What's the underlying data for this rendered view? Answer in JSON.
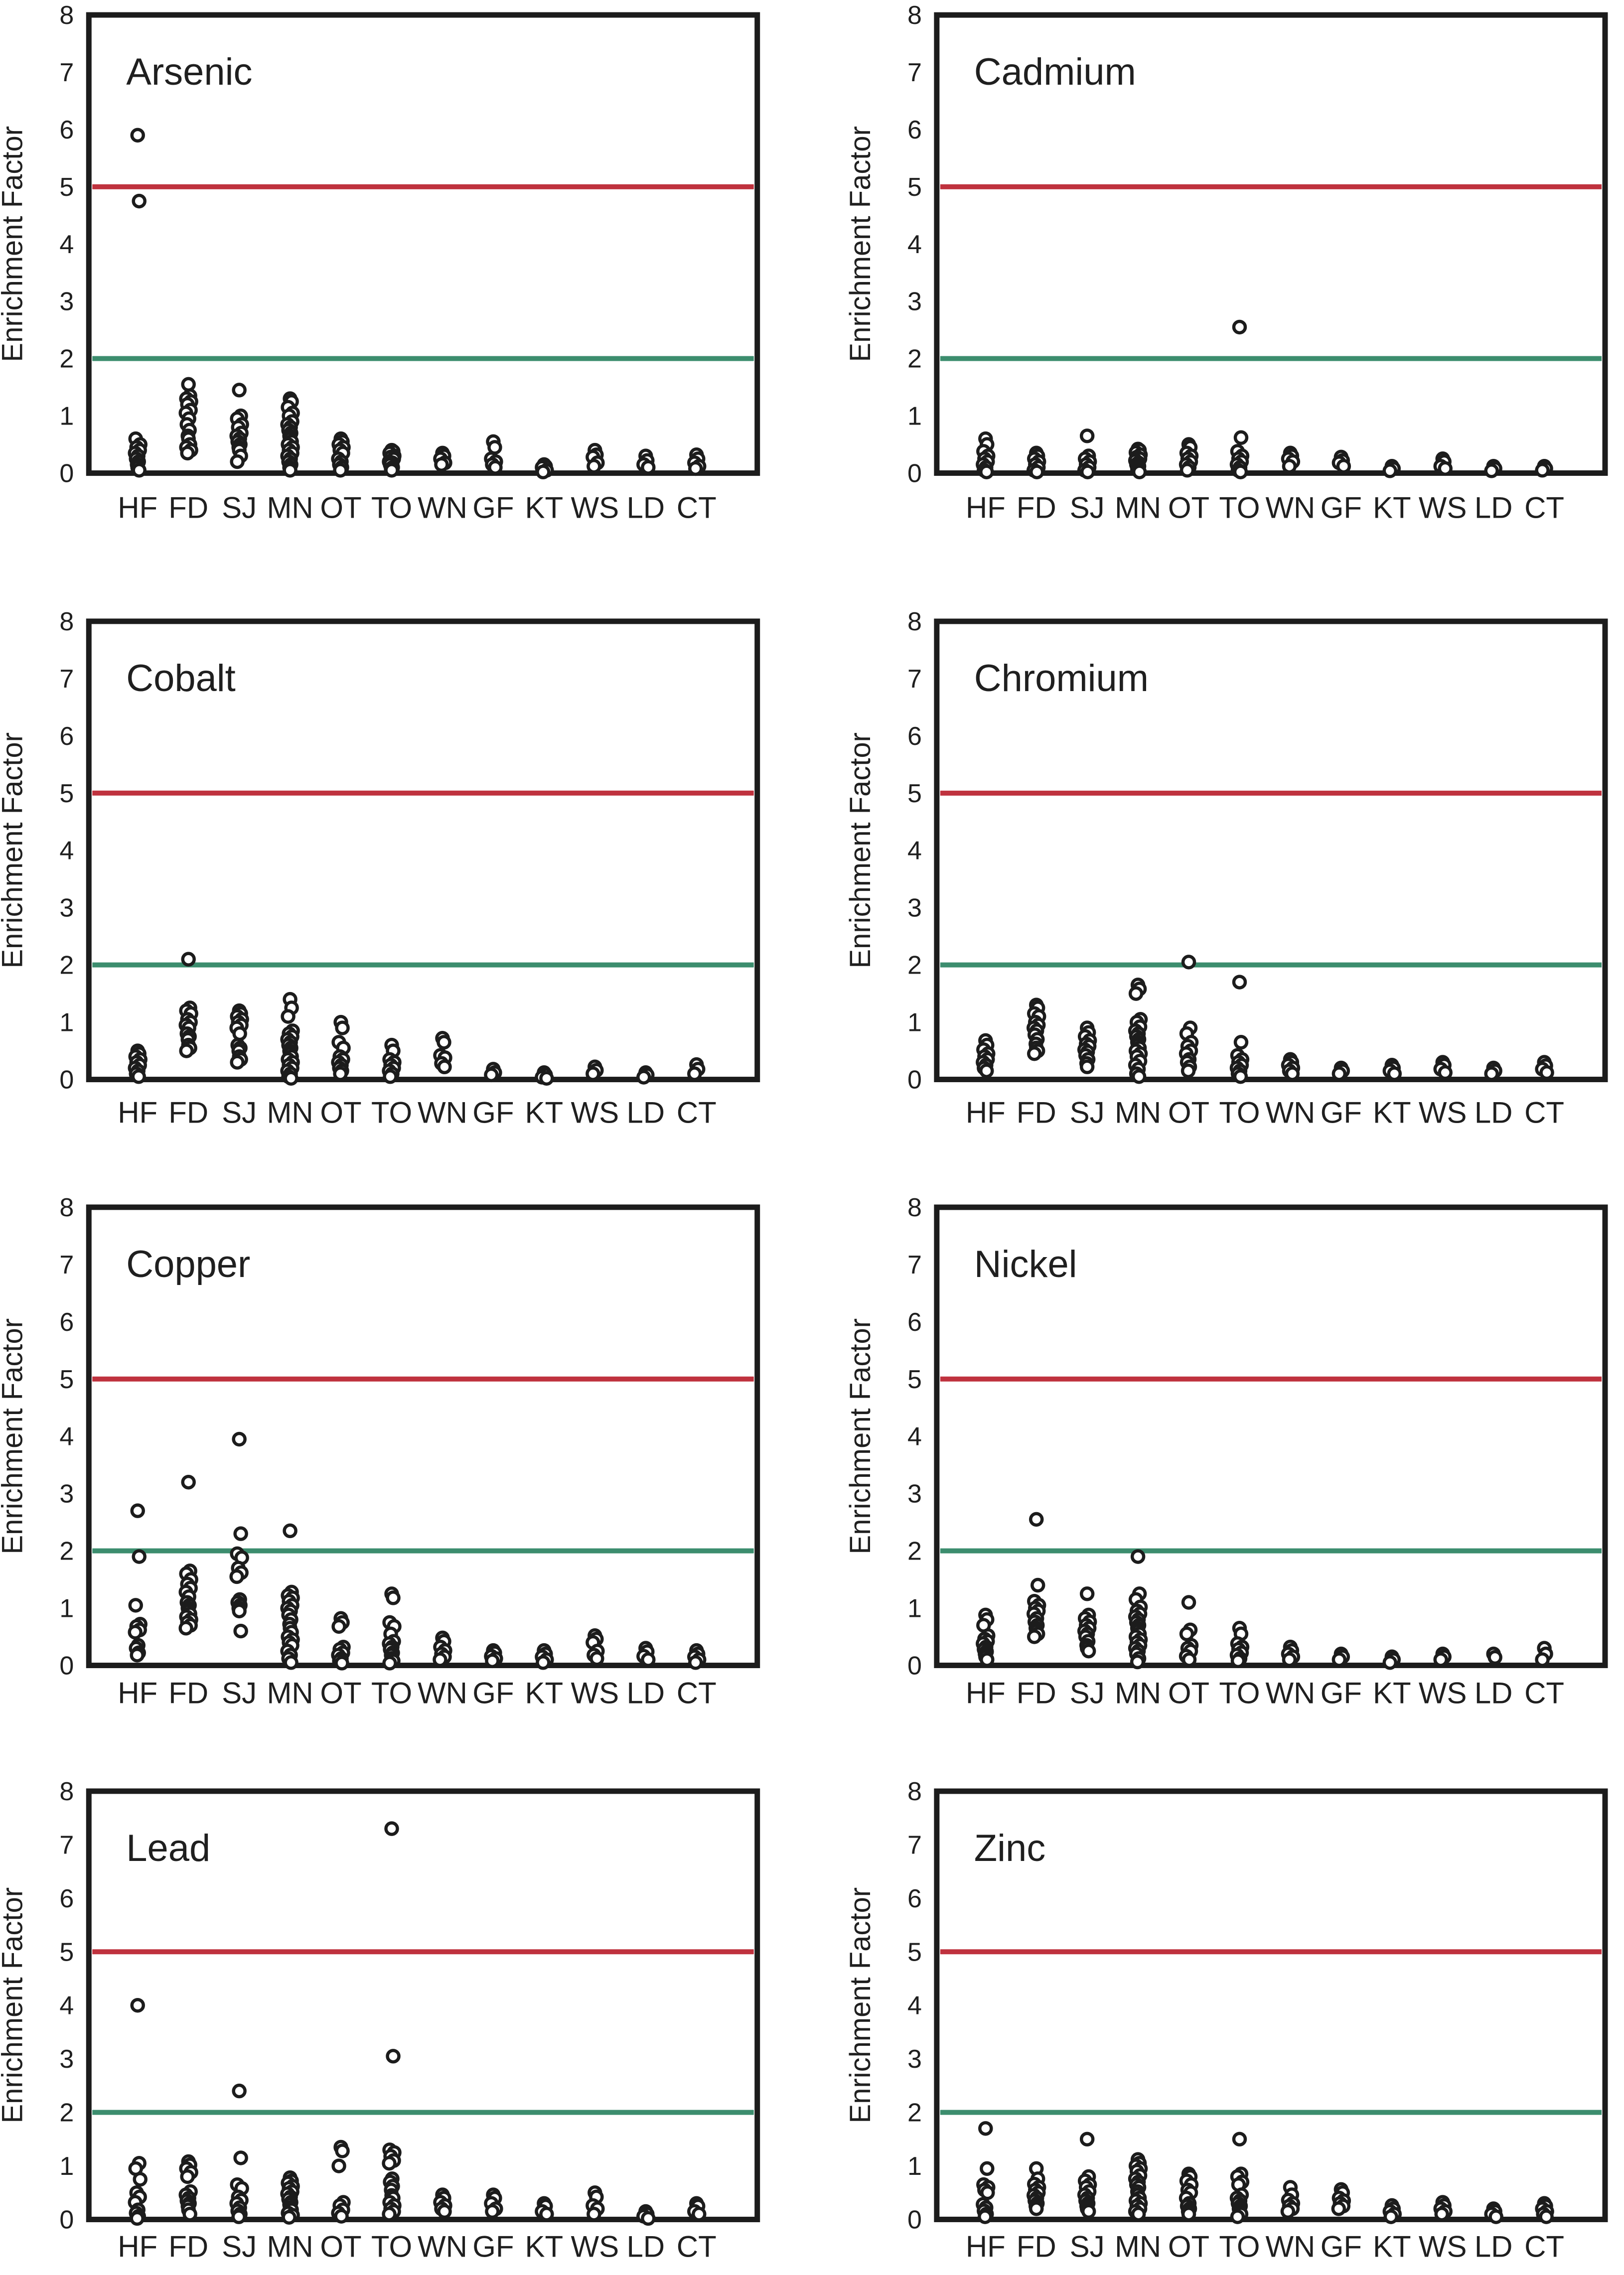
{
  "figure": {
    "ylabel": "Enrichment Factor",
    "ylim": [
      0,
      8
    ],
    "yticks": [
      0,
      1,
      2,
      3,
      4,
      5,
      6,
      7,
      8
    ],
    "categories": [
      "HF",
      "FD",
      "SJ",
      "MN",
      "OT",
      "TO",
      "WN",
      "GF",
      "KT",
      "WS",
      "LD",
      "CT"
    ],
    "thresholds": {
      "upper": {
        "value": 5,
        "color": "#bf323e",
        "name": "significant-enrichment-line"
      },
      "lower": {
        "value": 2,
        "color": "#3c8d6e",
        "name": "minimal-enrichment-line"
      }
    },
    "marker": {
      "shape": "open-circle",
      "stroke": "#1c1c1c",
      "fill": "#ffffff"
    },
    "grid": "off",
    "legend": "none"
  },
  "chart_data": [
    {
      "type": "scatter",
      "title": "Arsenic",
      "xlabel": "",
      "ylabel": "Enrichment Factor",
      "ylim": [
        0,
        8
      ],
      "points": {
        "HF": [
          5.9,
          4.75,
          0.6,
          0.5,
          0.45,
          0.4,
          0.35,
          0.3,
          0.25,
          0.2,
          0.15,
          0.1,
          0.05
        ],
        "FD": [
          1.55,
          1.35,
          1.3,
          1.25,
          1.2,
          1.1,
          1.05,
          0.95,
          0.85,
          0.75,
          0.65,
          0.6,
          0.5,
          0.45,
          0.4,
          0.35
        ],
        "SJ": [
          1.45,
          1.0,
          0.95,
          0.85,
          0.8,
          0.7,
          0.65,
          0.6,
          0.55,
          0.5,
          0.45,
          0.4,
          0.3,
          0.2
        ],
        "MN": [
          1.3,
          1.25,
          1.15,
          1.05,
          1.0,
          0.9,
          0.85,
          0.8,
          0.75,
          0.7,
          0.65,
          0.6,
          0.55,
          0.5,
          0.45,
          0.4,
          0.35,
          0.3,
          0.25,
          0.2,
          0.15,
          0.1,
          0.05
        ],
        "OT": [
          0.6,
          0.55,
          0.5,
          0.45,
          0.4,
          0.35,
          0.25,
          0.2,
          0.15,
          0.1,
          0.05
        ],
        "TO": [
          0.4,
          0.38,
          0.35,
          0.3,
          0.28,
          0.25,
          0.2,
          0.18,
          0.15,
          0.1,
          0.08,
          0.05
        ],
        "WN": [
          0.35,
          0.3,
          0.25,
          0.18,
          0.15
        ],
        "GF": [
          0.55,
          0.45,
          0.25,
          0.2,
          0.15,
          0.1
        ],
        "KT": [
          0.15,
          0.12,
          0.1,
          0.05,
          0.02
        ],
        "WS": [
          0.4,
          0.32,
          0.28,
          0.18,
          0.12
        ],
        "LD": [
          0.3,
          0.22,
          0.15,
          0.1
        ],
        "CT": [
          0.32,
          0.25,
          0.18,
          0.12,
          0.08
        ]
      }
    },
    {
      "type": "scatter",
      "title": "Cadmium",
      "xlabel": "",
      "ylabel": "Enrichment Factor",
      "ylim": [
        0,
        8
      ],
      "points": {
        "HF": [
          0.6,
          0.5,
          0.38,
          0.3,
          0.25,
          0.2,
          0.15,
          0.1,
          0.05,
          0.02
        ],
        "FD": [
          0.35,
          0.3,
          0.25,
          0.2,
          0.15,
          0.1,
          0.05,
          0.02
        ],
        "SJ": [
          0.65,
          0.3,
          0.25,
          0.2,
          0.15,
          0.1,
          0.05,
          0.02
        ],
        "MN": [
          0.42,
          0.4,
          0.36,
          0.32,
          0.28,
          0.25,
          0.22,
          0.18,
          0.15,
          0.12,
          0.08,
          0.05,
          0.02
        ],
        "OT": [
          0.5,
          0.45,
          0.35,
          0.3,
          0.25,
          0.2,
          0.15,
          0.1,
          0.05
        ],
        "TO": [
          2.55,
          0.62,
          0.38,
          0.3,
          0.25,
          0.2,
          0.15,
          0.1,
          0.05,
          0.02
        ],
        "WN": [
          0.35,
          0.3,
          0.25,
          0.2,
          0.12
        ],
        "GF": [
          0.28,
          0.22,
          0.18,
          0.12
        ],
        "KT": [
          0.12,
          0.08,
          0.04
        ],
        "WS": [
          0.25,
          0.2,
          0.12,
          0.08
        ],
        "LD": [
          0.12,
          0.08,
          0.04
        ],
        "CT": [
          0.12,
          0.08,
          0.05
        ]
      }
    },
    {
      "type": "scatter",
      "title": "Cobalt",
      "xlabel": "",
      "ylabel": "Enrichment Factor",
      "ylim": [
        0,
        8
      ],
      "points": {
        "HF": [
          0.5,
          0.45,
          0.4,
          0.35,
          0.3,
          0.25,
          0.2,
          0.15,
          0.1,
          0.05
        ],
        "FD": [
          2.1,
          1.25,
          1.2,
          1.15,
          1.05,
          1.0,
          0.95,
          0.9,
          0.8,
          0.75,
          0.7,
          0.6,
          0.55,
          0.5
        ],
        "SJ": [
          1.2,
          1.15,
          1.1,
          1.05,
          1.0,
          0.95,
          0.9,
          0.8,
          0.6,
          0.55,
          0.5,
          0.4,
          0.35,
          0.3
        ],
        "MN": [
          1.4,
          1.25,
          1.1,
          0.85,
          0.8,
          0.75,
          0.7,
          0.65,
          0.6,
          0.55,
          0.5,
          0.45,
          0.4,
          0.35,
          0.3,
          0.25,
          0.2,
          0.15,
          0.1,
          0.05,
          0.02
        ],
        "OT": [
          1.0,
          0.9,
          0.65,
          0.55,
          0.4,
          0.35,
          0.3,
          0.25,
          0.2,
          0.15,
          0.1
        ],
        "TO": [
          0.6,
          0.5,
          0.35,
          0.3,
          0.25,
          0.2,
          0.15,
          0.1,
          0.05
        ],
        "WN": [
          0.72,
          0.65,
          0.42,
          0.38,
          0.28,
          0.22
        ],
        "GF": [
          0.18,
          0.12,
          0.08
        ],
        "KT": [
          0.12,
          0.08,
          0.04,
          0.02
        ],
        "WS": [
          0.22,
          0.16,
          0.1
        ],
        "LD": [
          0.12,
          0.08,
          0.04
        ],
        "CT": [
          0.26,
          0.18,
          0.1
        ]
      }
    },
    {
      "type": "scatter",
      "title": "Chromium",
      "xlabel": "",
      "ylabel": "Enrichment Factor",
      "ylim": [
        0,
        8
      ],
      "points": {
        "HF": [
          0.68,
          0.6,
          0.52,
          0.45,
          0.4,
          0.35,
          0.3,
          0.25,
          0.2,
          0.15
        ],
        "FD": [
          1.3,
          1.25,
          1.15,
          1.1,
          1.0,
          0.95,
          0.9,
          0.85,
          0.78,
          0.7,
          0.62,
          0.55,
          0.5,
          0.45
        ],
        "SJ": [
          0.9,
          0.82,
          0.75,
          0.68,
          0.62,
          0.58,
          0.52,
          0.48,
          0.42,
          0.35,
          0.28,
          0.22
        ],
        "MN": [
          1.65,
          1.58,
          1.5,
          1.05,
          1.0,
          0.92,
          0.85,
          0.8,
          0.75,
          0.7,
          0.65,
          0.6,
          0.55,
          0.5,
          0.45,
          0.4,
          0.32,
          0.25,
          0.18,
          0.1,
          0.05
        ],
        "OT": [
          2.05,
          0.9,
          0.8,
          0.65,
          0.58,
          0.5,
          0.45,
          0.35,
          0.3,
          0.22,
          0.15
        ],
        "TO": [
          1.7,
          0.65,
          0.42,
          0.35,
          0.3,
          0.25,
          0.2,
          0.15,
          0.1,
          0.05
        ],
        "WN": [
          0.35,
          0.3,
          0.25,
          0.2,
          0.15,
          0.1
        ],
        "GF": [
          0.2,
          0.15,
          0.1
        ],
        "KT": [
          0.25,
          0.2,
          0.15,
          0.1
        ],
        "WS": [
          0.3,
          0.25,
          0.18,
          0.12
        ],
        "LD": [
          0.2,
          0.15,
          0.1
        ],
        "CT": [
          0.3,
          0.24,
          0.18,
          0.12
        ]
      }
    },
    {
      "type": "scatter",
      "title": "Copper",
      "xlabel": "",
      "ylabel": "Enrichment Factor",
      "ylim": [
        0,
        8
      ],
      "points": {
        "HF": [
          2.7,
          1.9,
          1.05,
          0.72,
          0.68,
          0.62,
          0.58,
          0.35,
          0.3,
          0.22,
          0.18
        ],
        "FD": [
          3.2,
          1.65,
          1.6,
          1.5,
          1.42,
          1.35,
          1.28,
          1.2,
          1.1,
          1.05,
          1.0,
          0.95,
          0.9,
          0.85,
          0.8,
          0.75,
          0.7,
          0.65
        ],
        "SJ": [
          3.95,
          2.3,
          1.95,
          1.88,
          1.7,
          1.62,
          1.55,
          1.15,
          1.1,
          1.05,
          1.0,
          0.95,
          0.6
        ],
        "MN": [
          2.35,
          1.28,
          1.22,
          1.18,
          1.12,
          1.05,
          1.0,
          0.95,
          0.88,
          0.8,
          0.72,
          0.65,
          0.58,
          0.5,
          0.45,
          0.4,
          0.35,
          0.25,
          0.18,
          0.12,
          0.05
        ],
        "OT": [
          0.82,
          0.75,
          0.68,
          0.32,
          0.28,
          0.22,
          0.18,
          0.12,
          0.08,
          0.04
        ],
        "TO": [
          1.25,
          1.18,
          0.75,
          0.68,
          0.55,
          0.42,
          0.38,
          0.32,
          0.28,
          0.22,
          0.18,
          0.12,
          0.08,
          0.04
        ],
        "WN": [
          0.48,
          0.42,
          0.32,
          0.26,
          0.2,
          0.15,
          0.1
        ],
        "GF": [
          0.26,
          0.22,
          0.16,
          0.12,
          0.08
        ],
        "KT": [
          0.26,
          0.2,
          0.15,
          0.1,
          0.05
        ],
        "WS": [
          0.52,
          0.46,
          0.4,
          0.25,
          0.18,
          0.12
        ],
        "LD": [
          0.3,
          0.24,
          0.16,
          0.1
        ],
        "CT": [
          0.26,
          0.2,
          0.15,
          0.1,
          0.05
        ]
      }
    },
    {
      "type": "scatter",
      "title": "Nickel",
      "xlabel": "",
      "ylabel": "Enrichment Factor",
      "ylim": [
        0,
        8
      ],
      "points": {
        "HF": [
          0.88,
          0.8,
          0.7,
          0.52,
          0.46,
          0.42,
          0.38,
          0.32,
          0.28,
          0.24,
          0.2,
          0.15,
          0.1
        ],
        "FD": [
          2.55,
          1.4,
          1.12,
          1.05,
          1.0,
          0.95,
          0.9,
          0.82,
          0.76,
          0.7,
          0.65,
          0.6,
          0.55,
          0.5
        ],
        "SJ": [
          1.25,
          0.88,
          0.82,
          0.76,
          0.7,
          0.65,
          0.6,
          0.55,
          0.5,
          0.42,
          0.35,
          0.3,
          0.25
        ],
        "MN": [
          1.9,
          1.25,
          1.15,
          1.02,
          0.95,
          0.9,
          0.85,
          0.8,
          0.75,
          0.7,
          0.65,
          0.6,
          0.55,
          0.5,
          0.45,
          0.4,
          0.35,
          0.3,
          0.25,
          0.2,
          0.12,
          0.06
        ],
        "OT": [
          1.1,
          0.62,
          0.55,
          0.35,
          0.3,
          0.25,
          0.16,
          0.1
        ],
        "TO": [
          0.65,
          0.55,
          0.38,
          0.32,
          0.28,
          0.22,
          0.18,
          0.12,
          0.08
        ],
        "WN": [
          0.32,
          0.26,
          0.2,
          0.15,
          0.1
        ],
        "GF": [
          0.2,
          0.15,
          0.1
        ],
        "KT": [
          0.15,
          0.1,
          0.05
        ],
        "WS": [
          0.2,
          0.15,
          0.1
        ],
        "LD": [
          0.2,
          0.14
        ],
        "CT": [
          0.3,
          0.2,
          0.1
        ]
      }
    },
    {
      "type": "scatter",
      "title": "Lead",
      "xlabel": "",
      "ylabel": "Enrichment Factor",
      "ylim": [
        0,
        8
      ],
      "points": {
        "HF": [
          4.0,
          1.05,
          0.95,
          0.75,
          0.5,
          0.42,
          0.32,
          0.18,
          0.12,
          0.06,
          0.02
        ],
        "FD": [
          1.08,
          1.02,
          0.95,
          0.88,
          0.8,
          0.52,
          0.46,
          0.4,
          0.35,
          0.3,
          0.25,
          0.18,
          0.1
        ],
        "SJ": [
          2.4,
          1.15,
          0.65,
          0.58,
          0.42,
          0.36,
          0.3,
          0.22,
          0.16,
          0.1,
          0.05
        ],
        "MN": [
          0.78,
          0.72,
          0.68,
          0.62,
          0.58,
          0.52,
          0.48,
          0.42,
          0.38,
          0.32,
          0.28,
          0.22,
          0.18,
          0.12,
          0.08,
          0.04
        ],
        "OT": [
          1.35,
          1.28,
          1.0,
          0.32,
          0.26,
          0.18,
          0.12,
          0.06
        ],
        "TO": [
          7.3,
          3.05,
          1.3,
          1.25,
          1.18,
          1.1,
          1.05,
          0.76,
          0.7,
          0.62,
          0.55,
          0.45,
          0.4,
          0.32,
          0.26,
          0.2,
          0.15,
          0.1
        ],
        "WN": [
          0.46,
          0.4,
          0.32,
          0.26,
          0.2,
          0.15
        ],
        "GF": [
          0.46,
          0.4,
          0.3,
          0.2,
          0.15
        ],
        "KT": [
          0.3,
          0.25,
          0.15,
          0.1
        ],
        "WS": [
          0.5,
          0.42,
          0.26,
          0.2,
          0.1
        ],
        "LD": [
          0.15,
          0.1,
          0.06,
          0.02
        ],
        "CT": [
          0.3,
          0.25,
          0.15,
          0.1
        ]
      }
    },
    {
      "type": "scatter",
      "title": "Zinc",
      "xlabel": "",
      "ylabel": "Enrichment Factor",
      "ylim": [
        0,
        8
      ],
      "points": {
        "HF": [
          1.7,
          0.95,
          0.65,
          0.6,
          0.55,
          0.5,
          0.28,
          0.22,
          0.16,
          0.1,
          0.05
        ],
        "FD": [
          0.95,
          0.76,
          0.66,
          0.6,
          0.55,
          0.5,
          0.45,
          0.4,
          0.35,
          0.3,
          0.25,
          0.2
        ],
        "SJ": [
          1.5,
          0.8,
          0.72,
          0.65,
          0.6,
          0.52,
          0.46,
          0.4,
          0.35,
          0.3,
          0.25,
          0.2,
          0.15
        ],
        "MN": [
          1.12,
          1.05,
          1.0,
          0.95,
          0.9,
          0.82,
          0.76,
          0.7,
          0.65,
          0.6,
          0.52,
          0.46,
          0.4,
          0.35,
          0.3,
          0.25,
          0.2,
          0.15,
          0.1
        ],
        "OT": [
          0.85,
          0.8,
          0.72,
          0.65,
          0.55,
          0.5,
          0.4,
          0.3,
          0.25,
          0.2,
          0.15,
          0.1
        ],
        "TO": [
          1.5,
          0.85,
          0.8,
          0.7,
          0.65,
          0.46,
          0.4,
          0.35,
          0.3,
          0.25,
          0.2,
          0.15,
          0.1,
          0.05
        ],
        "WN": [
          0.6,
          0.46,
          0.36,
          0.3,
          0.25,
          0.2,
          0.15
        ],
        "GF": [
          0.56,
          0.5,
          0.4,
          0.35,
          0.3,
          0.25,
          0.2
        ],
        "KT": [
          0.26,
          0.2,
          0.15,
          0.1,
          0.05
        ],
        "WS": [
          0.32,
          0.26,
          0.2,
          0.15,
          0.1
        ],
        "LD": [
          0.2,
          0.15,
          0.1,
          0.05
        ],
        "CT": [
          0.3,
          0.25,
          0.2,
          0.15,
          0.1,
          0.05
        ]
      }
    }
  ]
}
